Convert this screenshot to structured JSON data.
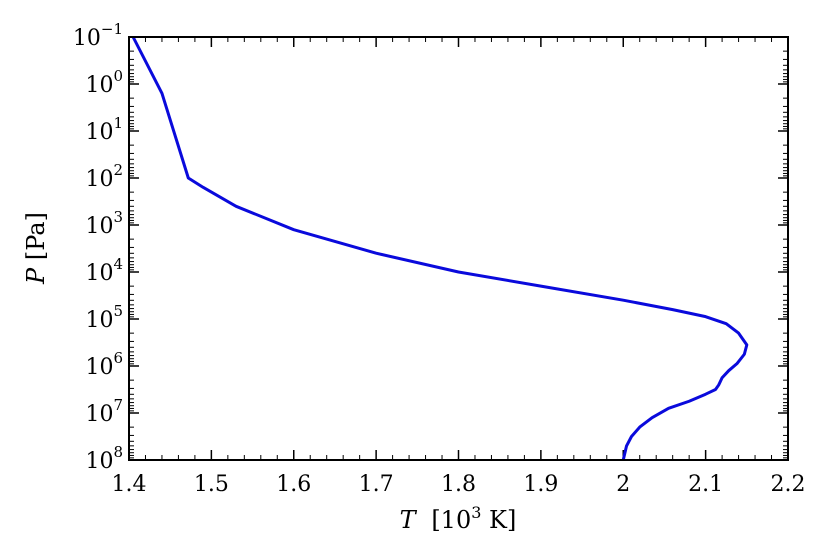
{
  "chart_data": {
    "type": "line",
    "title": "",
    "xlabel": {
      "var": "T",
      "text": "[10",
      "sup": "3",
      "suffix": " K]"
    },
    "ylabel": {
      "var": "P",
      "text": " [Pa]"
    },
    "xlim": [
      1.4,
      2.2
    ],
    "ylim_exponent": [
      -1,
      8
    ],
    "y_scale": "log",
    "y_inverted": true,
    "grid": false,
    "x_ticks": [
      {
        "value": 1.4,
        "label": "1.4"
      },
      {
        "value": 1.5,
        "label": "1.5"
      },
      {
        "value": 1.6,
        "label": "1.6"
      },
      {
        "value": 1.7,
        "label": "1.7"
      },
      {
        "value": 1.8,
        "label": "1.8"
      },
      {
        "value": 1.9,
        "label": "1.9"
      },
      {
        "value": 2.0,
        "label": "2"
      },
      {
        "value": 2.1,
        "label": "2.1"
      },
      {
        "value": 2.2,
        "label": "2.2"
      }
    ],
    "y_ticks": [
      {
        "exp": -1,
        "base": "10",
        "sup": "−1"
      },
      {
        "exp": 0,
        "base": "10",
        "sup": "0"
      },
      {
        "exp": 1,
        "base": "10",
        "sup": "1"
      },
      {
        "exp": 2,
        "base": "10",
        "sup": "2"
      },
      {
        "exp": 3,
        "base": "10",
        "sup": "3"
      },
      {
        "exp": 4,
        "base": "10",
        "sup": "4"
      },
      {
        "exp": 5,
        "base": "10",
        "sup": "5"
      },
      {
        "exp": 6,
        "base": "10",
        "sup": "6"
      },
      {
        "exp": 7,
        "base": "10",
        "sup": "7"
      },
      {
        "exp": 8,
        "base": "10",
        "sup": "8"
      }
    ],
    "series": [
      {
        "color": "#0a0adc",
        "points": [
          {
            "T": 1.405,
            "P": 0.1
          },
          {
            "T": 1.44,
            "P": 1.58
          },
          {
            "T": 1.472,
            "P": 100
          },
          {
            "T": 1.49,
            "P": 158
          },
          {
            "T": 1.53,
            "P": 400
          },
          {
            "T": 1.6,
            "P": 1259
          },
          {
            "T": 1.7,
            "P": 3981
          },
          {
            "T": 1.8,
            "P": 10000
          },
          {
            "T": 1.9,
            "P": 19953
          },
          {
            "T": 2.0,
            "P": 39811
          },
          {
            "T": 2.06,
            "P": 63096
          },
          {
            "T": 2.1,
            "P": 89125
          },
          {
            "T": 2.125,
            "P": 125893
          },
          {
            "T": 2.14,
            "P": 199526
          },
          {
            "T": 2.15,
            "P": 354813
          },
          {
            "T": 2.147,
            "P": 562341
          },
          {
            "T": 2.138,
            "P": 891251
          },
          {
            "T": 2.128,
            "P": 1258925
          },
          {
            "T": 2.12,
            "P": 1778279
          },
          {
            "T": 2.116,
            "P": 2511886
          },
          {
            "T": 2.112,
            "P": 3162278
          },
          {
            "T": 2.1,
            "P": 3981072
          },
          {
            "T": 2.08,
            "P": 5623413
          },
          {
            "T": 2.055,
            "P": 7943282
          },
          {
            "T": 2.035,
            "P": 12589254
          },
          {
            "T": 2.02,
            "P": 19952623
          },
          {
            "T": 2.01,
            "P": 31622777
          },
          {
            "T": 2.004,
            "P": 50118723
          },
          {
            "T": 2.0,
            "P": 100000000
          }
        ]
      }
    ]
  }
}
